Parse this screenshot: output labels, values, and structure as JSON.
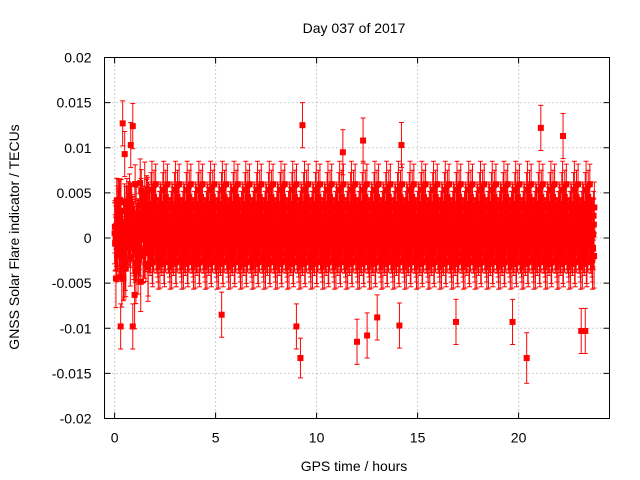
{
  "chart_data": {
    "type": "scatter",
    "title": "Day 037 of 2017",
    "xlabel": "GPS time / hours",
    "ylabel": "GNSS Solar Flare indicator / TECUs",
    "xlim": [
      -0.5,
      24.5
    ],
    "ylim": [
      -0.02,
      0.02
    ],
    "x_ticks": [
      0,
      5,
      10,
      15,
      20
    ],
    "x_tick_labels": [
      "0",
      "5",
      "10",
      "15",
      "20"
    ],
    "y_ticks": [
      -0.02,
      -0.015,
      -0.01,
      -0.005,
      0,
      0.005,
      0.01,
      0.015,
      0.02
    ],
    "y_tick_labels": [
      "-0.02",
      "-0.015",
      "-0.01",
      "-0.005",
      "0",
      "0.005",
      "0.01",
      "0.015",
      "0.02"
    ],
    "grid": true,
    "marker": "square",
    "error_bars": true,
    "series_color": "#ff0000",
    "x_range_data": [
      0.0,
      23.75
    ],
    "typical_spread": [
      -0.006,
      0.006
    ],
    "typical_error": 0.003,
    "notable_points": [
      {
        "x": 0.4,
        "y": 0.0127,
        "err": 0.0025
      },
      {
        "x": 0.9,
        "y": 0.0124,
        "err": 0.0025
      },
      {
        "x": 0.8,
        "y": 0.0103,
        "err": 0.0025
      },
      {
        "x": 0.5,
        "y": 0.0093,
        "err": 0.0025
      },
      {
        "x": 0.3,
        "y": -0.0098,
        "err": 0.0025
      },
      {
        "x": 0.9,
        "y": -0.0098,
        "err": 0.0025
      },
      {
        "x": 9.3,
        "y": 0.0125,
        "err": 0.0025
      },
      {
        "x": 9.2,
        "y": -0.0133,
        "err": 0.0022
      },
      {
        "x": 9.0,
        "y": -0.0098,
        "err": 0.0025
      },
      {
        "x": 12.0,
        "y": -0.0115,
        "err": 0.0025
      },
      {
        "x": 12.5,
        "y": -0.0108,
        "err": 0.0025
      },
      {
        "x": 12.3,
        "y": 0.0108,
        "err": 0.0025
      },
      {
        "x": 11.3,
        "y": 0.0095,
        "err": 0.0025
      },
      {
        "x": 14.2,
        "y": 0.0103,
        "err": 0.0025
      },
      {
        "x": 14.1,
        "y": -0.0097,
        "err": 0.0025
      },
      {
        "x": 20.4,
        "y": -0.0133,
        "err": 0.0028
      },
      {
        "x": 21.1,
        "y": 0.0122,
        "err": 0.0025
      },
      {
        "x": 19.7,
        "y": -0.0093,
        "err": 0.0025
      },
      {
        "x": 22.2,
        "y": 0.0113,
        "err": 0.0025
      },
      {
        "x": 23.1,
        "y": -0.0103,
        "err": 0.0025
      },
      {
        "x": 23.3,
        "y": -0.0103,
        "err": 0.0025
      },
      {
        "x": 16.9,
        "y": -0.0093,
        "err": 0.0025
      },
      {
        "x": 5.3,
        "y": -0.0085,
        "err": 0.0025
      },
      {
        "x": 13.0,
        "y": -0.0088,
        "err": 0.0025
      }
    ]
  }
}
